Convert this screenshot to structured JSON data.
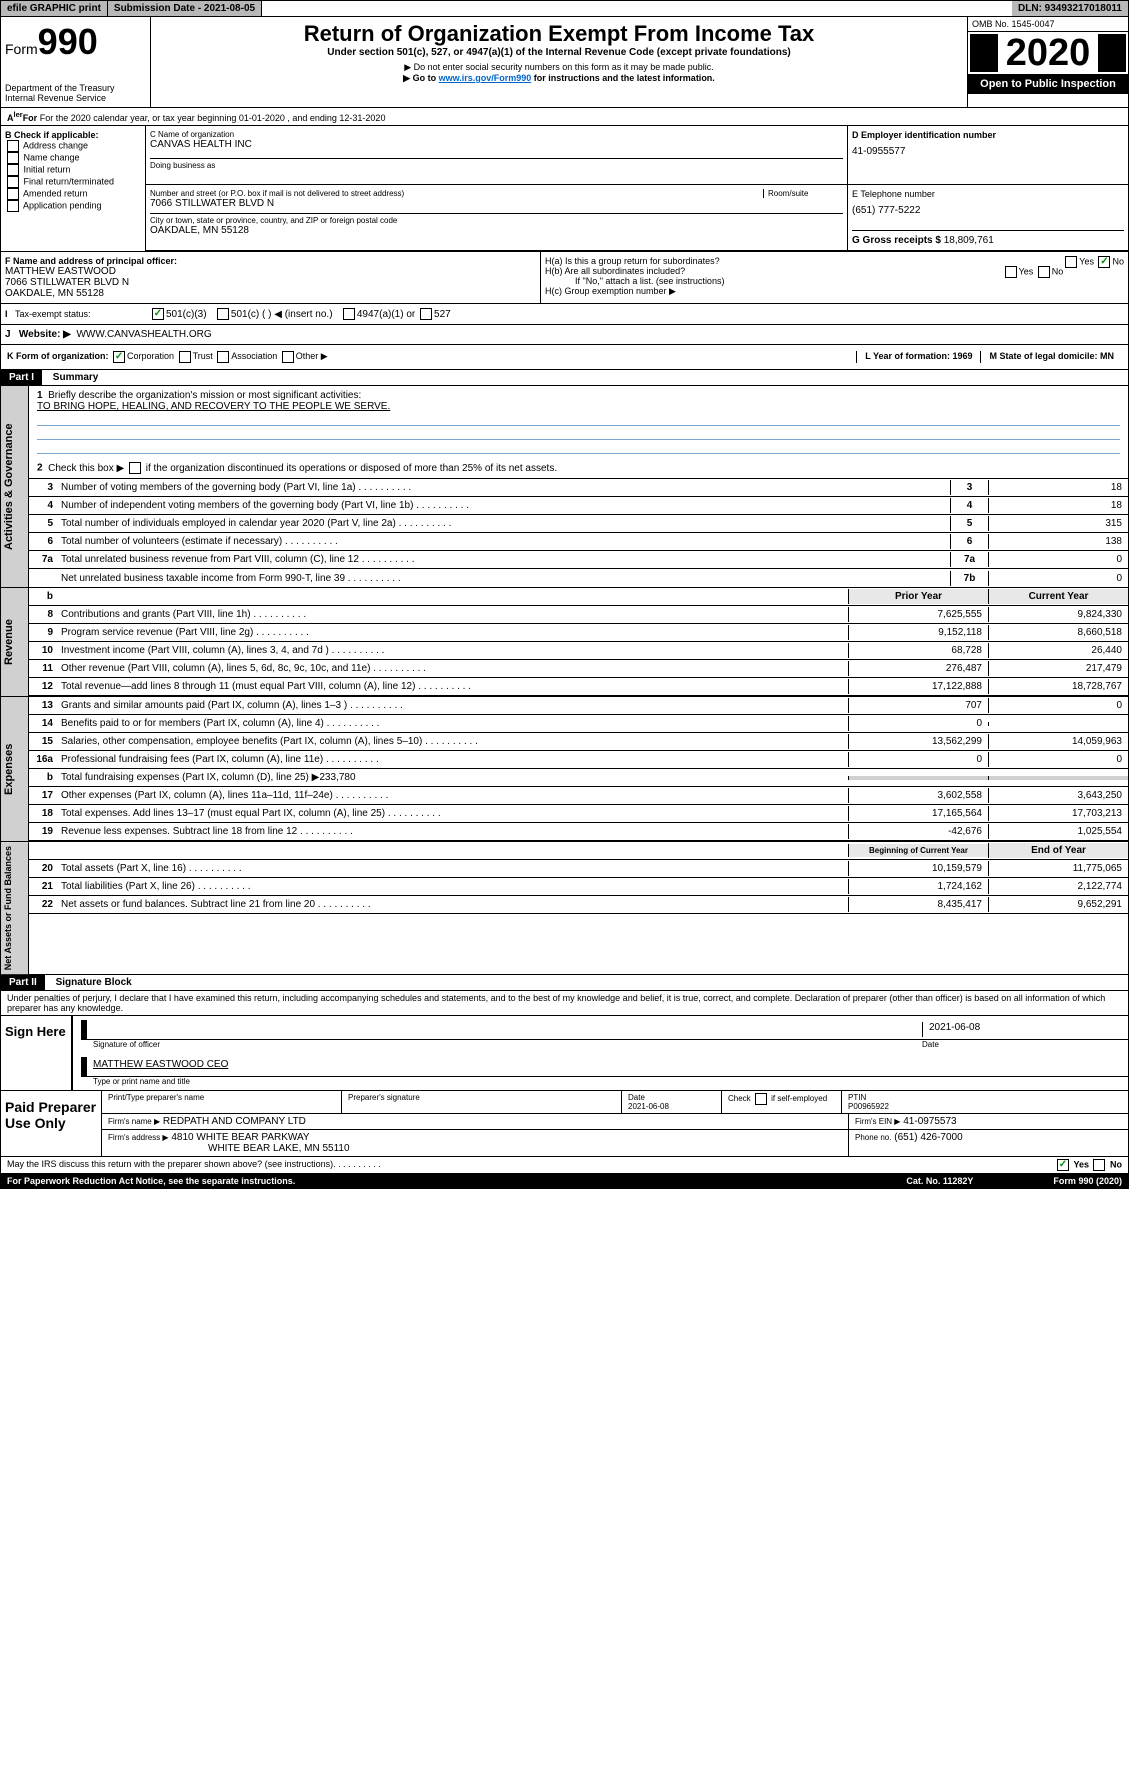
{
  "topbar": {
    "efile": "efile GRAPHIC print",
    "submission": "Submission Date - 2021-08-05",
    "dln": "DLN: 93493217018011"
  },
  "header": {
    "form": "Form",
    "form_num": "990",
    "dept": "Department of the Treasury",
    "irs": "Internal Revenue Service",
    "title": "Return of Organization Exempt From Income Tax",
    "subtitle": "Under section 501(c), 527, or 4947(a)(1) of the Internal Revenue Code (except private foundations)",
    "note1": "▶ Do not enter social security numbers on this form as it may be made public.",
    "note2_pre": "▶ Go to ",
    "note2_link": "www.irs.gov/Form990",
    "note2_post": " for instructions and the latest information.",
    "omb": "OMB No. 1545-0047",
    "year": "2020",
    "open": "Open to Public Inspection"
  },
  "row_a": "For the 2020 calendar year, or tax year beginning 01-01-2020    , and ending 12-31-2020",
  "box_b": {
    "label": "B Check if applicable:",
    "items": [
      "Address change",
      "Name change",
      "Initial return",
      "Final return/terminated",
      "Amended return",
      "Application pending"
    ]
  },
  "box_c": {
    "name_label": "C Name of organization",
    "name": "CANVAS HEALTH INC",
    "dba_label": "Doing business as",
    "addr_label": "Number and street (or P.O. box if mail is not delivered to street address)",
    "room_label": "Room/suite",
    "addr": "7066 STILLWATER BLVD N",
    "city_label": "City or town, state or province, country, and ZIP or foreign postal code",
    "city": "OAKDALE, MN  55128"
  },
  "box_d": {
    "label": "D Employer identification number",
    "value": "41-0955577"
  },
  "box_e": {
    "label": "E Telephone number",
    "value": "(651) 777-5222"
  },
  "box_g": {
    "label": "G Gross receipts $",
    "value": "18,809,761"
  },
  "box_f": {
    "label": "F  Name and address of principal officer:",
    "name": "MATTHEW EASTWOOD",
    "addr": "7066 STILLWATER BLVD N",
    "city": "OAKDALE, MN  55128"
  },
  "box_h": {
    "a": "H(a)  Is this a group return for subordinates?",
    "b": "H(b)  Are all subordinates included?",
    "note": "If \"No,\" attach a list. (see instructions)",
    "c": "H(c)  Group exemption number ▶"
  },
  "tax_status": {
    "label": "Tax-exempt status:",
    "opt1": "501(c)(3)",
    "opt2": "501(c) (   ) ◀ (insert no.)",
    "opt3": "4947(a)(1) or",
    "opt4": "527"
  },
  "website": {
    "label": "Website: ▶",
    "value": "WWW.CANVASHEALTH.ORG"
  },
  "row_k": {
    "k": "K Form of organization:",
    "corp": "Corporation",
    "trust": "Trust",
    "assoc": "Association",
    "other": "Other ▶",
    "l": "L Year of formation: 1969",
    "m": "M State of legal domicile: MN"
  },
  "part1": {
    "header": "Part I",
    "title": "Summary"
  },
  "summary": {
    "line1": "Briefly describe the organization's mission or most significant activities:",
    "mission": "TO BRING HOPE, HEALING, AND RECOVERY TO THE PEOPLE WE SERVE.",
    "line2": "Check this box ▶        if the organization discontinued its operations or disposed of more than 25% of its net assets.",
    "lines": [
      {
        "n": "3",
        "t": "Number of voting members of the governing body (Part VI, line 1a)",
        "vn": "3",
        "v": "18"
      },
      {
        "n": "4",
        "t": "Number of independent voting members of the governing body (Part VI, line 1b)",
        "vn": "4",
        "v": "18"
      },
      {
        "n": "5",
        "t": "Total number of individuals employed in calendar year 2020 (Part V, line 2a)",
        "vn": "5",
        "v": "315"
      },
      {
        "n": "6",
        "t": "Total number of volunteers (estimate if necessary)",
        "vn": "6",
        "v": "138"
      },
      {
        "n": "7a",
        "t": "Total unrelated business revenue from Part VIII, column (C), line 12",
        "vn": "7a",
        "v": "0"
      },
      {
        "n": "",
        "t": "Net unrelated business taxable income from Form 990-T, line 39",
        "vn": "7b",
        "v": "0"
      }
    ]
  },
  "revenue": {
    "header_prior": "Prior Year",
    "header_current": "Current Year",
    "rows": [
      {
        "n": "8",
        "t": "Contributions and grants (Part VIII, line 1h)",
        "p": "7,625,555",
        "c": "9,824,330"
      },
      {
        "n": "9",
        "t": "Program service revenue (Part VIII, line 2g)",
        "p": "9,152,118",
        "c": "8,660,518"
      },
      {
        "n": "10",
        "t": "Investment income (Part VIII, column (A), lines 3, 4, and 7d )",
        "p": "68,728",
        "c": "26,440"
      },
      {
        "n": "11",
        "t": "Other revenue (Part VIII, column (A), lines 5, 6d, 8c, 9c, 10c, and 11e)",
        "p": "276,487",
        "c": "217,479"
      },
      {
        "n": "12",
        "t": "Total revenue—add lines 8 through 11 (must equal Part VIII, column (A), line 12)",
        "p": "17,122,888",
        "c": "18,728,767"
      }
    ]
  },
  "expenses": {
    "rows": [
      {
        "n": "13",
        "t": "Grants and similar amounts paid (Part IX, column (A), lines 1–3 )",
        "p": "707",
        "c": "0"
      },
      {
        "n": "14",
        "t": "Benefits paid to or for members (Part IX, column (A), line 4)",
        "p": "0",
        "c": ""
      },
      {
        "n": "15",
        "t": "Salaries, other compensation, employee benefits (Part IX, column (A), lines 5–10)",
        "p": "13,562,299",
        "c": "14,059,963"
      },
      {
        "n": "16a",
        "t": "Professional fundraising fees (Part IX, column (A), line 11e)",
        "p": "0",
        "c": "0"
      },
      {
        "n": "b",
        "t": "Total fundraising expenses (Part IX, column (D), line 25) ▶233,780",
        "p": "",
        "c": "",
        "shaded": true
      },
      {
        "n": "17",
        "t": "Other expenses (Part IX, column (A), lines 11a–11d, 11f–24e)",
        "p": "3,602,558",
        "c": "3,643,250"
      },
      {
        "n": "18",
        "t": "Total expenses. Add lines 13–17 (must equal Part IX, column (A), line 25)",
        "p": "17,165,564",
        "c": "17,703,213"
      },
      {
        "n": "19",
        "t": "Revenue less expenses. Subtract line 18 from line 12",
        "p": "-42,676",
        "c": "1,025,554"
      }
    ]
  },
  "netassets": {
    "header_begin": "Beginning of Current Year",
    "header_end": "End of Year",
    "rows": [
      {
        "n": "20",
        "t": "Total assets (Part X, line 16)",
        "p": "10,159,579",
        "c": "11,775,065"
      },
      {
        "n": "21",
        "t": "Total liabilities (Part X, line 26)",
        "p": "1,724,162",
        "c": "2,122,774"
      },
      {
        "n": "22",
        "t": "Net assets or fund balances. Subtract line 21 from line 20",
        "p": "8,435,417",
        "c": "9,652,291"
      }
    ]
  },
  "part2": {
    "header": "Part II",
    "title": "Signature Block"
  },
  "perjury": "Under penalties of perjury, I declare that I have examined this return, including accompanying schedules and statements, and to the best of my knowledge and belief, it is true, correct, and complete. Declaration of preparer (other than officer) is based on all information of which preparer has any knowledge.",
  "sign": {
    "label": "Sign Here",
    "sig_date": "2021-06-08",
    "sig_label": "Signature of officer",
    "date_label": "Date",
    "name": "MATTHEW EASTWOOD CEO",
    "name_label": "Type or print name and title"
  },
  "paid": {
    "label": "Paid Preparer Use Only",
    "h1": "Print/Type preparer's name",
    "h2": "Preparer's signature",
    "h3": "Date",
    "date": "2021-06-08",
    "h4": "Check        if self-employed",
    "h5": "PTIN",
    "ptin": "P00965922",
    "firm_label": "Firm's name     ▶",
    "firm": "REDPATH AND COMPANY LTD",
    "ein_label": "Firm's EIN ▶",
    "ein": "41-0975573",
    "addr_label": "Firm's address ▶",
    "addr1": "4810 WHITE BEAR PARKWAY",
    "addr2": "WHITE BEAR LAKE, MN  55110",
    "phone_label": "Phone no.",
    "phone": "(651) 426-7000"
  },
  "discuss": "May the IRS discuss this return with the preparer shown above? (see instructions)",
  "footer": {
    "left": "For Paperwork Reduction Act Notice, see the separate instructions.",
    "mid": "Cat. No. 11282Y",
    "right": "Form 990 (2020)"
  }
}
